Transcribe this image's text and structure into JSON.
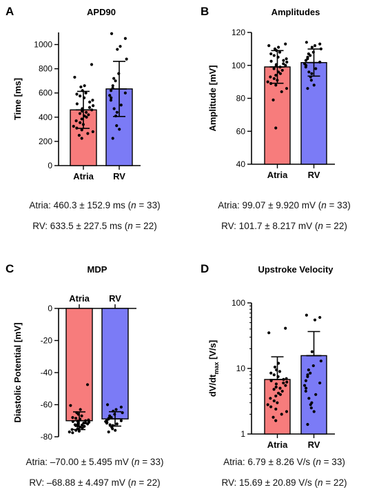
{
  "chart_data": [
    {
      "panel": "A",
      "title": "APD90",
      "type": "bar",
      "ylabel": "Time [ms]",
      "yscale": "linear",
      "ylim": [
        0,
        1100
      ],
      "yticks": [
        0,
        200,
        400,
        600,
        800,
        1000
      ],
      "ytick_labels": [
        "0",
        "200",
        "400",
        "600",
        "800",
        "1000"
      ],
      "inverted": false,
      "categories": [
        "Atria",
        "RV"
      ],
      "series": [
        {
          "category": "Atria",
          "mean": 460.3,
          "sd": 152.9,
          "n": 33,
          "color": "#f77c7c",
          "points": [
            835,
            730,
            660,
            650,
            620,
            600,
            590,
            575,
            560,
            540,
            525,
            510,
            495,
            480,
            470,
            460,
            450,
            440,
            430,
            420,
            410,
            400,
            385,
            370,
            355,
            340,
            325,
            310,
            295,
            280,
            265,
            250,
            225
          ]
        },
        {
          "category": "RV",
          "mean": 633.5,
          "sd": 227.5,
          "n": 22,
          "color": "#7b7bf6",
          "points": [
            1090,
            1050,
            985,
            960,
            880,
            760,
            720,
            700,
            660,
            640,
            620,
            600,
            580,
            560,
            540,
            500,
            470,
            440,
            410,
            330,
            300,
            225
          ]
        }
      ],
      "stats_lines": [
        {
          "pre": "Atria: 460.3 ± 152.9 ms (",
          "n_sym": "n",
          "post": " = 33)"
        },
        {
          "pre": "RV: 633.5 ± 227.5 ms (",
          "n_sym": "n",
          "post": " = 22)"
        }
      ]
    },
    {
      "panel": "B",
      "title": "Amplitudes",
      "type": "bar",
      "ylabel": "Amplitude [mV]",
      "yscale": "linear",
      "ylim": [
        40,
        120
      ],
      "yticks": [
        40,
        60,
        80,
        100,
        120
      ],
      "ytick_labels": [
        "40",
        "60",
        "80",
        "100",
        "120"
      ],
      "inverted": false,
      "categories": [
        "Atria",
        "RV"
      ],
      "series": [
        {
          "category": "Atria",
          "mean": 99.07,
          "sd": 9.92,
          "n": 33,
          "color": "#f77c7c",
          "points": [
            113,
            112,
            111,
            110,
            109,
            108,
            107,
            106,
            105,
            104,
            103,
            102.5,
            102,
            101,
            100.5,
            100,
            99.5,
            99,
            98,
            97,
            96,
            95,
            94,
            93,
            92,
            91,
            90,
            89,
            88,
            86,
            84,
            79,
            62
          ]
        },
        {
          "category": "RV",
          "mean": 101.7,
          "sd": 8.217,
          "n": 22,
          "color": "#7b7bf6",
          "points": [
            114,
            113,
            112,
            111,
            110,
            108,
            107,
            106,
            105,
            104,
            103,
            102,
            101,
            100,
            99,
            98,
            96,
            95,
            93,
            91,
            88,
            86
          ]
        }
      ],
      "stats_lines": [
        {
          "pre": "Atria: 99.07 ± 9.920 mV (",
          "n_sym": "n",
          "post": " = 33)"
        },
        {
          "pre": "RV: 101.7 ± 8.217 mV (",
          "n_sym": "n",
          "post": " = 22)"
        }
      ]
    },
    {
      "panel": "C",
      "title": "MDP",
      "type": "bar",
      "ylabel": "Diastolic Potential [mV]",
      "yscale": "linear",
      "ylim": [
        -80,
        0
      ],
      "yticks": [
        0,
        -20,
        -40,
        -60,
        -80
      ],
      "ytick_labels": [
        "0",
        "-20",
        "-40",
        "-60",
        "-80"
      ],
      "inverted": true,
      "categories": [
        "Atria",
        "RV"
      ],
      "series": [
        {
          "category": "Atria",
          "mean": -70.0,
          "sd": 5.495,
          "n": 33,
          "color": "#f77c7c",
          "points": [
            -47.5,
            -60.5,
            -63,
            -65,
            -66,
            -67,
            -68,
            -68.5,
            -69,
            -69.5,
            -70,
            -70.5,
            -71,
            -71.3,
            -71.7,
            -72,
            -72.3,
            -72.7,
            -73,
            -73.5,
            -74,
            -74.5,
            -75,
            -75.5,
            -76,
            -76.5,
            -77,
            -77.5,
            -70.2,
            -70.8,
            -71.5,
            -72.5,
            -73.2
          ]
        },
        {
          "category": "RV",
          "mean": -68.88,
          "sd": 4.497,
          "n": 22,
          "color": "#7b7bf6",
          "points": [
            -60,
            -61.5,
            -63,
            -64,
            -65,
            -66,
            -67,
            -68,
            -68.5,
            -69,
            -69.5,
            -70,
            -70.5,
            -71,
            -71.5,
            -72,
            -72.5,
            -73,
            -74,
            -75,
            -76,
            -77
          ]
        }
      ],
      "stats_lines": [
        {
          "pre": "Atria: –70.00 ± 5.495 mV (",
          "n_sym": "n",
          "post": " = 33)"
        },
        {
          "pre": "RV: –68.88 ± 4.497 mV (",
          "n_sym": "n",
          "post": " = 22)"
        }
      ]
    },
    {
      "panel": "D",
      "title": "Upstroke Velocity",
      "type": "bar",
      "ylabel_main": "dV/dt",
      "ylabel_sub": "max",
      "ylabel_tail": " [V/s]",
      "yscale": "log",
      "ylim": [
        1,
        100
      ],
      "yticks": [
        1,
        10,
        100
      ],
      "ytick_labels": [
        "1",
        "10",
        "100"
      ],
      "inverted": false,
      "categories": [
        "Atria",
        "RV"
      ],
      "series": [
        {
          "category": "Atria",
          "mean": 6.79,
          "sd": 8.26,
          "upper_err": 15.05,
          "n": 33,
          "color": "#f77c7c",
          "points": [
            41,
            35,
            12,
            10.5,
            9.5,
            9,
            8.5,
            8,
            7.5,
            7,
            6.8,
            6.5,
            6.2,
            6,
            5.8,
            5.5,
            5.2,
            5,
            4.8,
            4.5,
            4.2,
            4,
            3.8,
            3.5,
            3.2,
            3,
            2.8,
            2.6,
            2.4,
            2.2,
            2.0,
            1.8,
            1.6
          ]
        },
        {
          "category": "RV",
          "mean": 15.69,
          "sd": 20.89,
          "upper_err": 36.58,
          "n": 22,
          "color": "#7b7bf6",
          "points": [
            65,
            60,
            55,
            18,
            13,
            11,
            9.5,
            8.5,
            8,
            7.5,
            6.5,
            6,
            5.5,
            5,
            4.5,
            4,
            3.5,
            3,
            2.8,
            2.5,
            2.2,
            1.4
          ]
        }
      ],
      "stats_lines": [
        {
          "pre": "Atria: 6.79 ± 8.26 V/s (",
          "n_sym": "n",
          "post": " = 33)"
        },
        {
          "pre": "RV: 15.69 ± 20.89 V/s (",
          "n_sym": "n",
          "post": " = 22)"
        }
      ]
    }
  ]
}
